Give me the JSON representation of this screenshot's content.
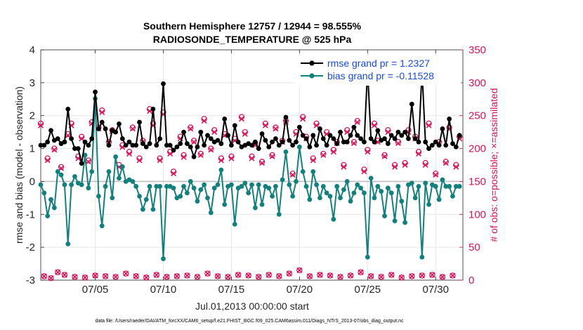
{
  "chart_data": {
    "type": "line",
    "title_line1": "Southern Hemisphere 12757 / 12944 = 98.555%",
    "title_line2": "RADIOSONDE_TEMPERATURE @ 525 hPa",
    "xlabel": "Jul.01,2013 00:00:00 start",
    "ylabel_left": "rmse and bias (model - observation)",
    "ylabel_right": "# of obs: o=possible; ×=assimilated",
    "footnote": "data file: /Users/raeder/DAI/ATM_forcXX/CAM6_setup/f.e21.FHIST_BGC.f09_025.CAM6assim.011/Diags_NTrS_2013-07/obs_diag_output.nc",
    "xlim": [
      1.0,
      32.0
    ],
    "ylim_left": [
      -3,
      4
    ],
    "ylim_right": [
      0,
      350
    ],
    "xticks": [
      5,
      10,
      15,
      20,
      25,
      30
    ],
    "xtick_labels": [
      "07/05",
      "07/10",
      "07/15",
      "07/20",
      "07/25",
      "07/30"
    ],
    "yticks_left": [
      -3,
      -2,
      -1,
      0,
      1,
      2,
      3,
      4
    ],
    "ytick_labels_left": [
      "-3",
      "-2",
      "-1",
      "0",
      "1",
      "2",
      "3",
      "4"
    ],
    "yticks_right": [
      0,
      50,
      100,
      150,
      200,
      250,
      300,
      350
    ],
    "ytick_labels_right": [
      "0",
      "50",
      "100",
      "150",
      "200",
      "250",
      "300",
      "350"
    ],
    "grid": true,
    "legend_position": "top-right",
    "colors": {
      "rmse": "#000000",
      "bias": "#14807d",
      "obs": "#d4145a",
      "zero_line": "#c0c0c0",
      "grid": "#e6e6e6"
    },
    "x": [
      1.0,
      1.25,
      1.5,
      1.75,
      2.0,
      2.25,
      2.5,
      2.75,
      3.0,
      3.25,
      3.5,
      3.75,
      4.0,
      4.25,
      4.5,
      4.75,
      5.0,
      5.25,
      5.5,
      5.75,
      6.0,
      6.25,
      6.5,
      6.75,
      7.0,
      7.25,
      7.5,
      7.75,
      8.0,
      8.25,
      8.5,
      8.75,
      9.0,
      9.25,
      9.5,
      9.75,
      10.0,
      10.25,
      10.5,
      10.75,
      11.0,
      11.25,
      11.5,
      11.75,
      12.0,
      12.25,
      12.5,
      12.75,
      13.0,
      13.25,
      13.5,
      13.75,
      14.0,
      14.25,
      14.5,
      14.75,
      15.0,
      15.25,
      15.5,
      15.75,
      16.0,
      16.25,
      16.5,
      16.75,
      17.0,
      17.25,
      17.5,
      17.75,
      18.0,
      18.25,
      18.5,
      18.75,
      19.0,
      19.25,
      19.5,
      19.75,
      20.0,
      20.25,
      20.5,
      20.75,
      21.0,
      21.25,
      21.5,
      21.75,
      22.0,
      22.25,
      22.5,
      22.75,
      23.0,
      23.25,
      23.5,
      23.75,
      24.0,
      24.25,
      24.5,
      24.75,
      25.0,
      25.25,
      25.5,
      25.75,
      26.0,
      26.25,
      26.5,
      26.75,
      27.0,
      27.25,
      27.5,
      27.75,
      28.0,
      28.25,
      28.5,
      28.75,
      29.0,
      29.25,
      29.5,
      29.75,
      30.0,
      30.25,
      30.5,
      30.75,
      31.0,
      31.25,
      31.5,
      31.75
    ],
    "series": [
      {
        "name": "rmse grand pr = 1.2327",
        "marker": "filled-circle",
        "values": [
          1.1,
          1.1,
          1.2,
          1.55,
          1.25,
          1.3,
          1.15,
          1.2,
          2.2,
          1.3,
          1.0,
          1.0,
          0.55,
          1.2,
          1.1,
          1.3,
          2.72,
          1.6,
          1.8,
          1.6,
          1.1,
          1.55,
          1.5,
          1.75,
          1.3,
          1.1,
          1.2,
          1.1,
          1.1,
          1.8,
          1.15,
          1.05,
          1.15,
          2.2,
          1.1,
          1.3,
          2.97,
          1.1,
          1.1,
          0.95,
          1.05,
          1.15,
          1.5,
          1.15,
          1.05,
          0.75,
          1.05,
          1.5,
          1.1,
          1.4,
          1.3,
          1.2,
          1.25,
          1.15,
          1.9,
          1.4,
          1.1,
          1.7,
          1.2,
          1.05,
          1.1,
          1.15,
          1.1,
          1.2,
          1.0,
          1.45,
          1.25,
          1.05,
          1.2,
          1.3,
          1.1,
          1.2,
          1.95,
          1.25,
          1.1,
          1.2,
          1.65,
          1.4,
          1.3,
          1.05,
          1.4,
          1.1,
          1.6,
          1.3,
          1.1,
          1.4,
          1.3,
          1.15,
          1.5,
          1.2,
          1.2,
          1.4,
          1.65,
          1.4,
          1.3,
          1.2,
          3.4,
          1.3,
          1.2,
          1.55,
          1.25,
          1.3,
          1.15,
          1.4,
          1.3,
          1.5,
          1.4,
          1.5,
          1.3,
          2.35,
          1.3,
          1.2,
          3.35,
          1.2,
          1.0,
          1.1,
          1.2,
          1.1,
          1.6,
          1.1,
          1.9,
          1.15,
          1.05,
          1.4
        ]
      },
      {
        "name": "bias grand pr = -0.11528",
        "marker": "filled-circle",
        "values": [
          -0.1,
          -0.35,
          -1.05,
          -0.55,
          -0.8,
          0.3,
          0.2,
          -0.1,
          -1.9,
          -0.1,
          0.15,
          -0.05,
          -0.1,
          0.8,
          -0.2,
          0.3,
          2.52,
          -0.45,
          -1.35,
          -0.15,
          0.3,
          -0.5,
          0.75,
          0.1,
          0.45,
          0.0,
          0.05,
          0.0,
          -0.15,
          -0.45,
          -0.85,
          -0.55,
          -0.15,
          -0.85,
          -0.15,
          -0.15,
          -2.35,
          -0.15,
          -0.15,
          -0.2,
          -0.5,
          -0.45,
          -0.15,
          -0.35,
          0.0,
          -0.2,
          -0.6,
          -0.25,
          -0.1,
          -0.5,
          -0.95,
          -0.2,
          -0.1,
          0.35,
          -0.7,
          -0.15,
          -0.1,
          -1.3,
          -0.2,
          -0.15,
          -0.05,
          -0.35,
          -0.1,
          -0.8,
          -0.1,
          -0.7,
          -0.15,
          -0.2,
          -0.45,
          -0.15,
          -1.0,
          0.05,
          0.9,
          -0.1,
          -0.45,
          0.0,
          1.05,
          0.3,
          -0.15,
          -0.55,
          0.3,
          -0.1,
          -0.5,
          -0.15,
          -0.35,
          -0.45,
          -1.15,
          -0.15,
          -0.5,
          -0.25,
          0.0,
          -0.6,
          -0.35,
          -0.1,
          -0.2,
          -0.35,
          -2.3,
          0.1,
          -0.5,
          -0.15,
          -0.3,
          -1.05,
          -0.2,
          -0.35,
          -1.2,
          -0.15,
          -0.6,
          -1.25,
          -0.1,
          -0.05,
          -0.5,
          -0.15,
          -2.3,
          -0.05,
          -0.7,
          -0.1,
          -0.15,
          -0.55,
          0.05,
          -0.15,
          -0.15,
          -0.45,
          -0.15,
          -0.15
        ]
      },
      {
        "name": "possible",
        "marker": "open-circle",
        "axis": "right",
        "values": [
          238,
          6,
          185,
          3,
          200,
          12,
          172,
          8,
          222,
          238,
          5,
          188,
          218,
          4,
          182,
          240,
          7,
          232,
          258,
          6,
          210,
          228,
          5,
          175,
          205,
          10,
          195,
          232,
          6,
          185,
          212,
          4,
          260,
          238,
          8,
          185,
          255,
          5,
          195,
          165,
          6,
          218,
          190,
          7,
          232,
          212,
          5,
          192,
          245,
          10,
          200,
          228,
          6,
          185,
          222,
          5,
          188,
          215,
          8,
          248,
          225,
          7,
          188,
          208,
          5,
          180,
          238,
          8,
          190,
          232,
          6,
          212,
          242,
          10,
          162,
          225,
          15,
          248,
          218,
          6,
          185,
          238,
          8,
          192,
          225,
          7,
          198,
          210,
          5,
          175,
          228,
          7,
          210,
          242,
          12,
          168,
          198,
          6,
          238,
          212,
          5,
          190,
          228,
          8,
          175,
          210,
          4,
          178,
          228,
          6,
          218,
          195,
          7,
          178,
          238,
          8,
          162,
          210,
          5,
          180,
          232,
          7,
          175,
          218
        ]
      },
      {
        "name": "assimilated",
        "marker": "x",
        "axis": "right",
        "values": [
          235,
          6,
          182,
          3,
          198,
          12,
          170,
          8,
          220,
          235,
          5,
          185,
          215,
          4,
          180,
          238,
          7,
          230,
          255,
          6,
          208,
          226,
          5,
          172,
          202,
          10,
          192,
          230,
          6,
          182,
          210,
          4,
          257,
          235,
          8,
          182,
          252,
          5,
          192,
          162,
          6,
          215,
          187,
          7,
          230,
          210,
          5,
          190,
          242,
          10,
          198,
          225,
          6,
          182,
          220,
          5,
          185,
          212,
          8,
          245,
          222,
          7,
          185,
          205,
          5,
          178,
          235,
          8,
          188,
          230,
          6,
          210,
          240,
          10,
          160,
          222,
          15,
          245,
          215,
          6,
          182,
          235,
          8,
          190,
          222,
          7,
          195,
          208,
          5,
          172,
          225,
          7,
          208,
          240,
          12,
          165,
          195,
          6,
          235,
          210,
          5,
          188,
          225,
          8,
          172,
          208,
          4,
          175,
          225,
          6,
          215,
          192,
          7,
          175,
          235,
          8,
          160,
          208,
          5,
          178,
          230,
          7,
          172,
          215
        ]
      }
    ]
  }
}
